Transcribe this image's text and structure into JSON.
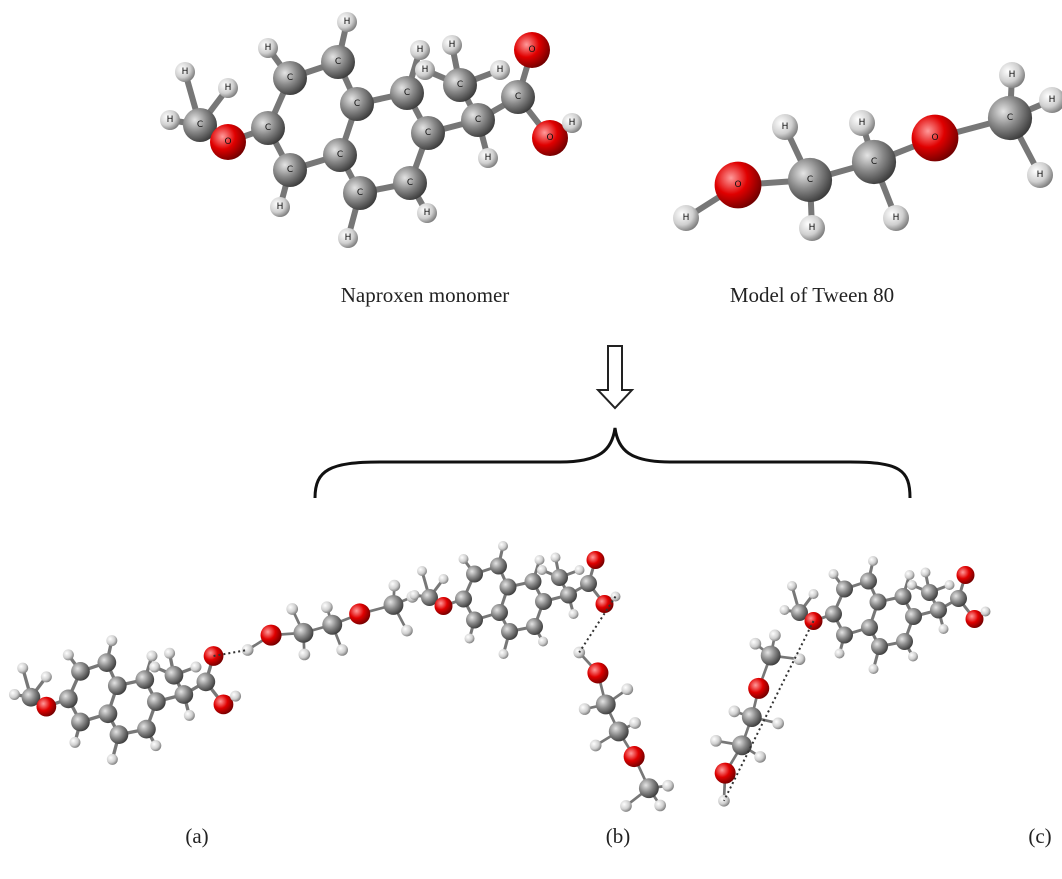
{
  "figure": {
    "naproxen": {
      "caption": "Naproxen monomer",
      "atoms": [
        "C",
        "H",
        "H",
        "H",
        "O",
        "C",
        "C",
        "C",
        "C",
        "C",
        "C",
        "C",
        "C",
        "C",
        "C",
        "H",
        "H",
        "H",
        "H",
        "H",
        "H",
        "C",
        "C",
        "H",
        "H",
        "H",
        "H",
        "C",
        "O",
        "O",
        "H"
      ]
    },
    "tween": {
      "caption": "Model of Tween 80",
      "atoms": [
        "H",
        "O",
        "C",
        "H",
        "H",
        "C",
        "H",
        "H",
        "O",
        "C",
        "H",
        "H",
        "H"
      ]
    },
    "complexes": [
      "(a)",
      "(b)",
      "(c)"
    ]
  }
}
